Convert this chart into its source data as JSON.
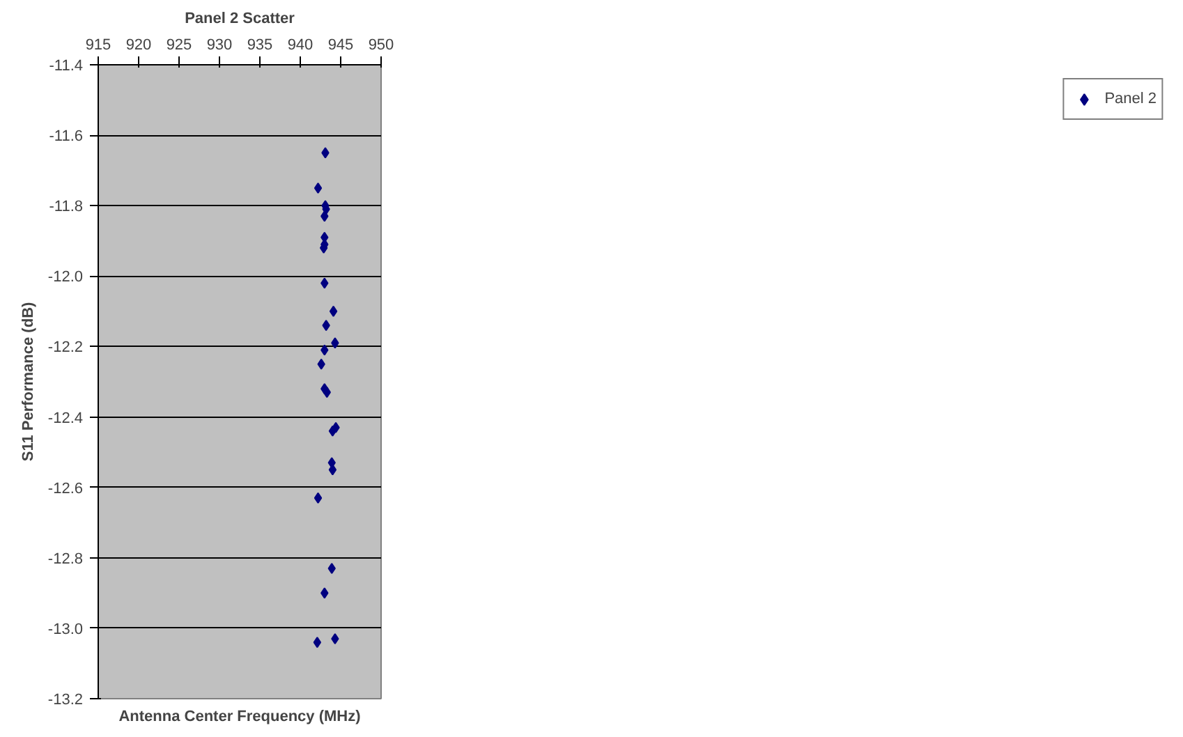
{
  "chart_data": {
    "type": "scatter",
    "title": "Panel 2 Scatter",
    "xlabel": "Antenna Center Frequency (MHz)",
    "ylabel": "S11 Performance (dB)",
    "series": [
      {
        "name": "Panel 2",
        "color": "#000080",
        "x": [
          943.1,
          942.2,
          943.1,
          943.2,
          943.0,
          943.0,
          943.0,
          942.9,
          943.0,
          944.1,
          943.2,
          944.3,
          943.0,
          942.6,
          943.0,
          943.3,
          944.4,
          944.0,
          943.9,
          944.0,
          942.2,
          943.9,
          943.0,
          942.1,
          944.3
        ],
        "values": [
          -11.65,
          -11.75,
          -11.8,
          -11.81,
          -11.83,
          -11.89,
          -11.91,
          -11.92,
          -12.02,
          -12.1,
          -12.14,
          -12.19,
          -12.21,
          -12.25,
          -12.32,
          -12.33,
          -12.43,
          -12.44,
          -12.53,
          -12.55,
          -12.63,
          -12.83,
          -12.9,
          -13.04,
          -13.03
        ]
      }
    ],
    "xlim": [
      915,
      950
    ],
    "xticks": [
      915,
      920,
      925,
      930,
      935,
      940,
      945,
      950
    ],
    "ylim": [
      -13.2,
      -11.4
    ],
    "yticks": [
      {
        "value": -13.2,
        "label": "-13.2"
      },
      {
        "value": -13.0,
        "label": "-13.0"
      },
      {
        "value": -12.8,
        "label": "-12.8"
      },
      {
        "value": -12.6,
        "label": "-12.6"
      },
      {
        "value": -12.4,
        "label": "-12.4"
      },
      {
        "value": -12.2,
        "label": "-12.2"
      },
      {
        "value": -12.0,
        "label": "-12.0"
      },
      {
        "value": -11.8,
        "label": "-11.8"
      },
      {
        "value": -11.6,
        "label": "-11.6"
      },
      {
        "value": -11.4,
        "label": "-11.4"
      }
    ],
    "grid": "y",
    "legend": "right",
    "marker": "diamond"
  }
}
